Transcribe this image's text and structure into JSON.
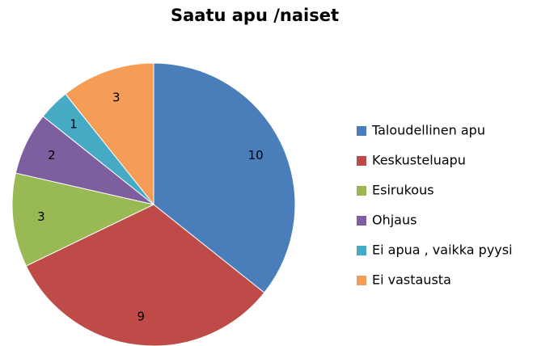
{
  "chart_data": {
    "type": "pie",
    "title": "Saatu apu /naiset",
    "categories": [
      "Taloudellinen apu",
      "Keskusteluapu",
      "Esirukous",
      "Ohjaus",
      "Ei apua , vaikka pyysi",
      "Ei vastausta"
    ],
    "values": [
      10,
      9,
      3,
      2,
      1,
      3
    ],
    "colors": [
      "#4a7ebb",
      "#be4b48",
      "#98b954",
      "#7d5fa0",
      "#46aac5",
      "#f59d56"
    ],
    "legend": "right"
  }
}
